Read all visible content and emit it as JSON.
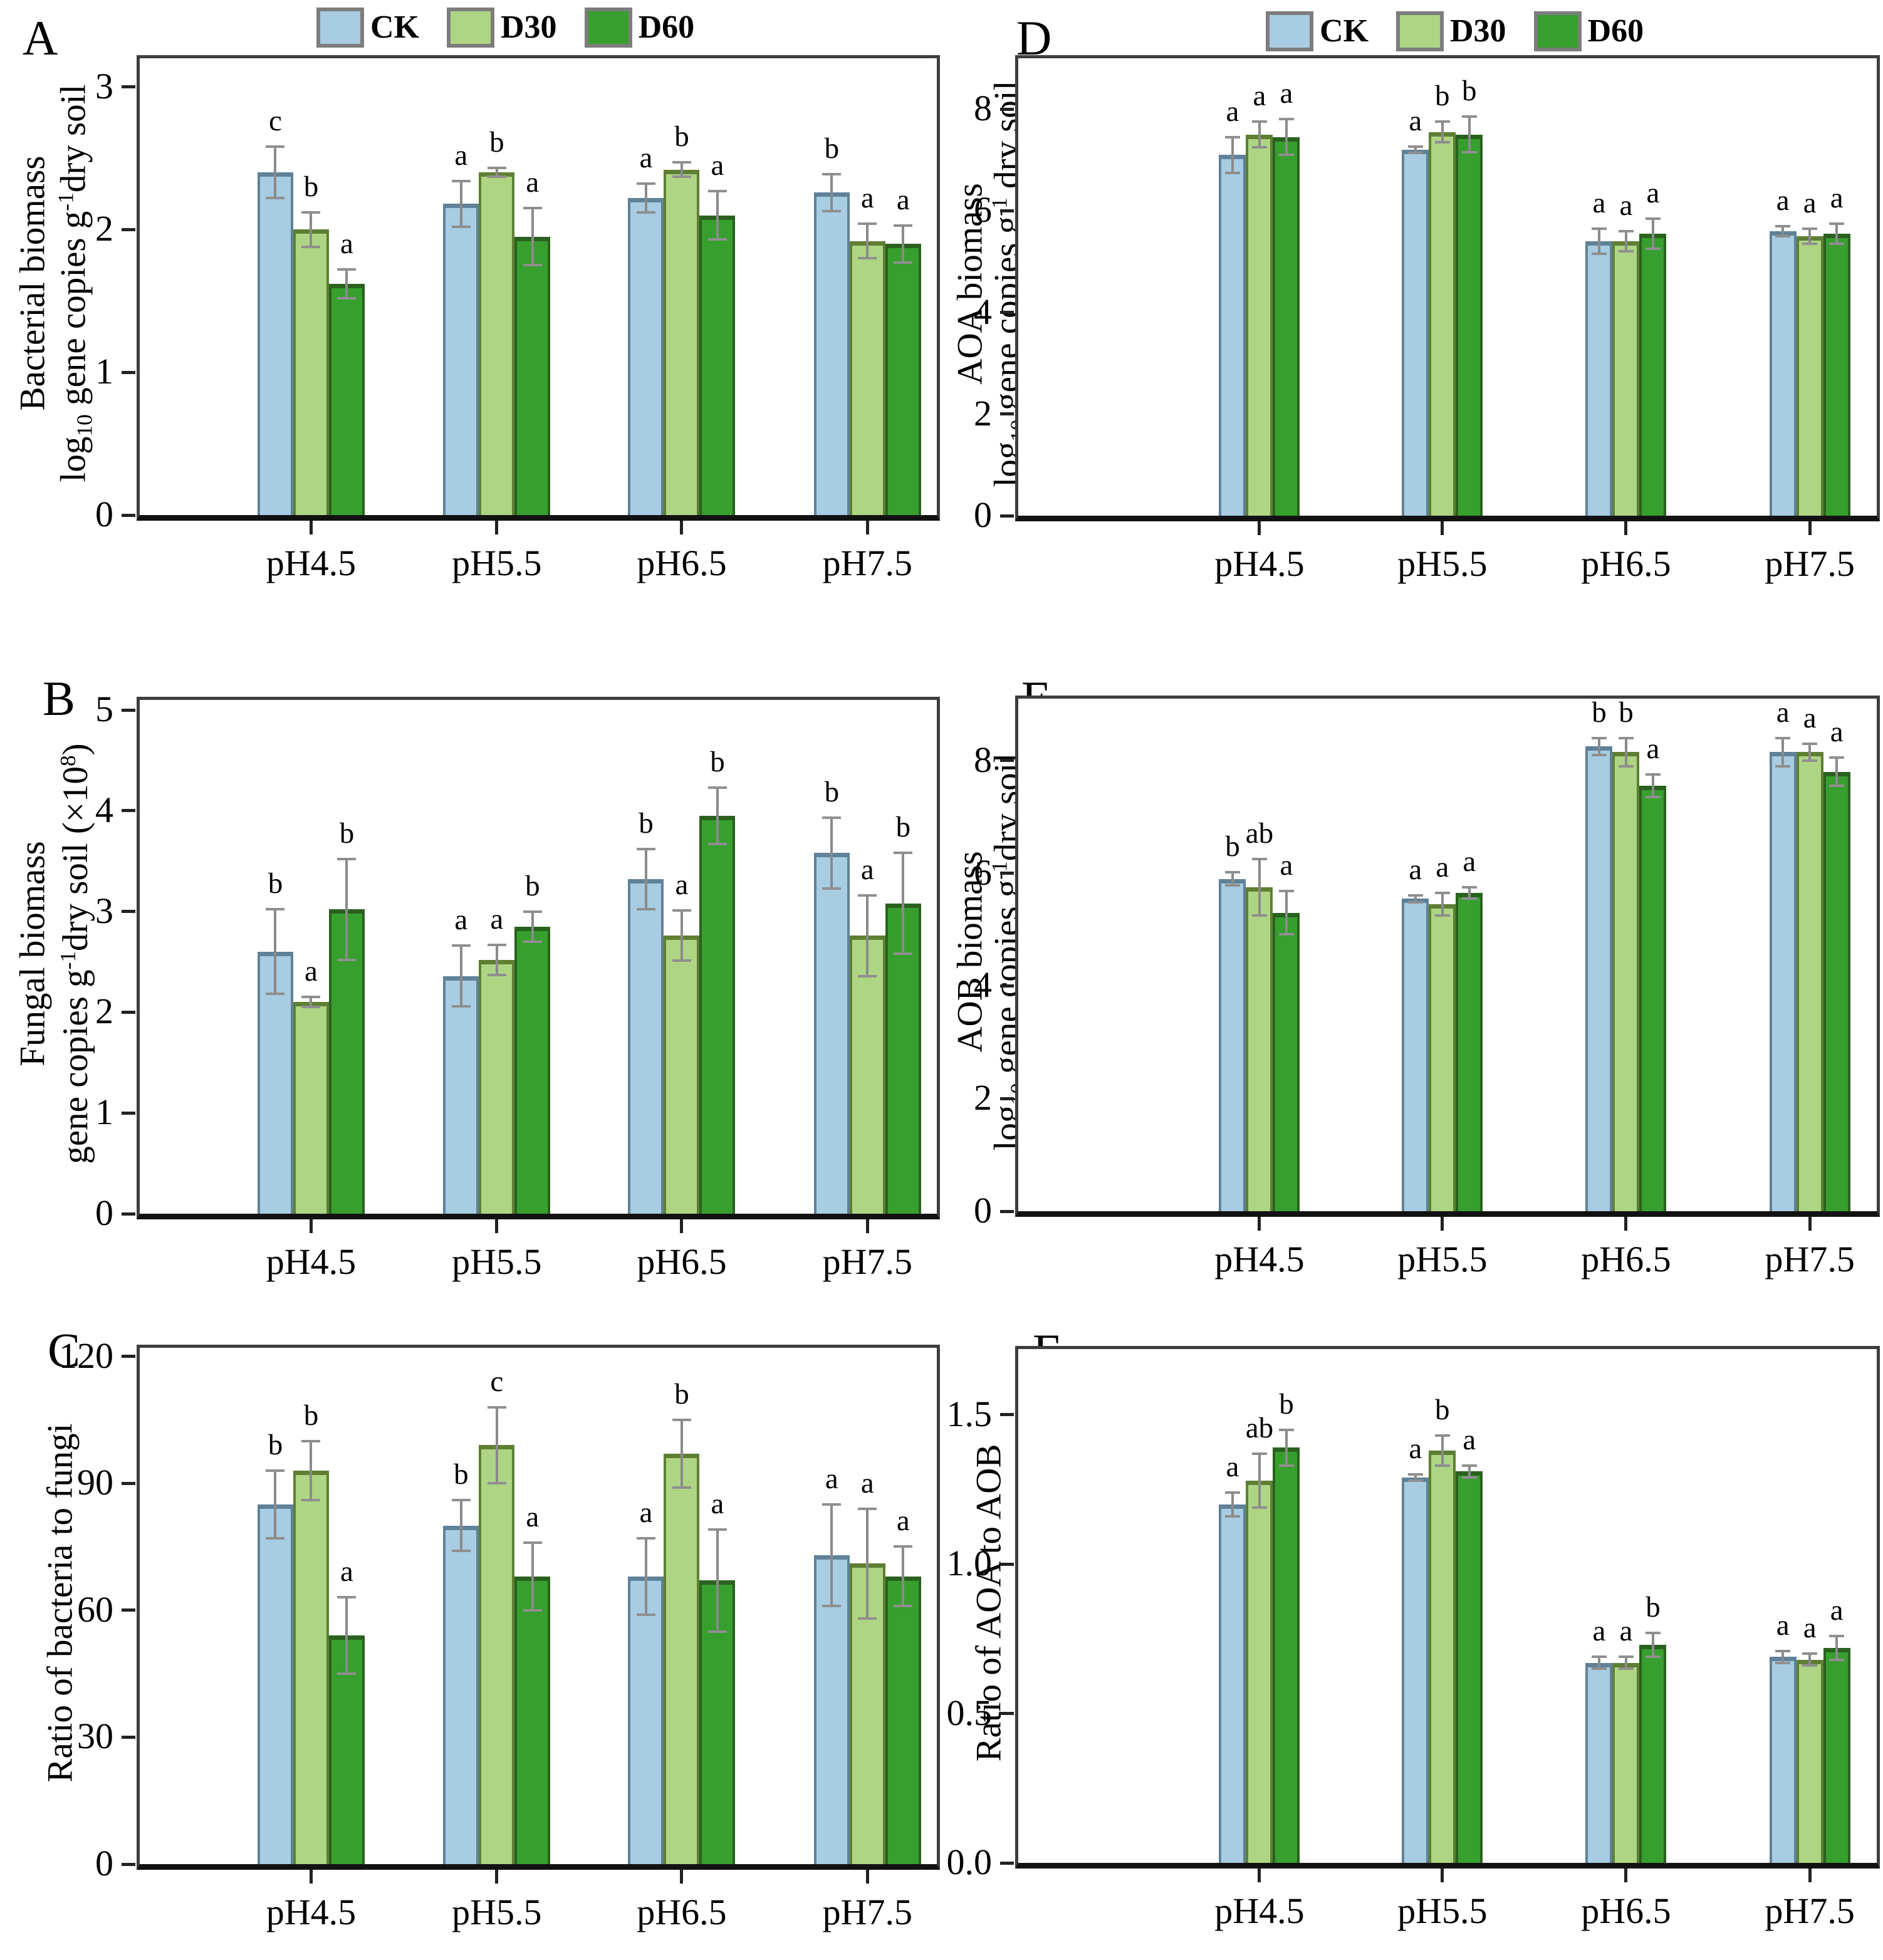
{
  "figure": {
    "legend": {
      "items": [
        {
          "label": "CK",
          "fill": "#a8cce2",
          "border": "#5f8299"
        },
        {
          "label": "D30",
          "fill": "#aed584",
          "border": "#5e7f33"
        },
        {
          "label": "D60",
          "fill": "#379f2e",
          "border": "#2a611f"
        }
      ]
    },
    "colors": {
      "error_bar": "#8a8a8a",
      "frame": "#3e3e3e",
      "axis": "#121212",
      "text": "#000000"
    }
  },
  "chart_data": [
    {
      "panel": "A",
      "type": "bar",
      "title": "Bacterial biomass",
      "ylabel_lines": [
        [
          {
            "t": "Bacterial biomass"
          }
        ],
        [
          {
            "t": "log"
          },
          {
            "t": "10",
            "style": "sub"
          },
          {
            "t": " gene copies g"
          },
          {
            "t": "-1",
            "style": "sup"
          },
          {
            "t": "dry soil"
          }
        ]
      ],
      "categories": [
        "pH4.5",
        "pH5.5",
        "pH6.5",
        "pH7.5"
      ],
      "ylim": [
        0,
        3.2
      ],
      "yticks": [
        {
          "v": 0,
          "label": "0"
        },
        {
          "v": 1,
          "label": "1"
        },
        {
          "v": 2,
          "label": "2"
        },
        {
          "v": 3,
          "label": "3"
        }
      ],
      "legend_position": "top",
      "grid": false,
      "series": [
        {
          "name": "CK",
          "values": [
            2.4,
            2.18,
            2.22,
            2.26
          ],
          "errors": [
            0.18,
            0.16,
            0.1,
            0.13
          ],
          "letters": [
            "c",
            "a",
            "a",
            "b"
          ]
        },
        {
          "name": "D30",
          "values": [
            2.0,
            2.4,
            2.42,
            1.92
          ],
          "errors": [
            0.12,
            0.03,
            0.05,
            0.12
          ],
          "letters": [
            "b",
            "b",
            "b",
            "a"
          ]
        },
        {
          "name": "D60",
          "values": [
            1.62,
            1.95,
            2.1,
            1.9
          ],
          "errors": [
            0.1,
            0.2,
            0.17,
            0.13
          ],
          "letters": [
            "a",
            "a",
            "a",
            "a"
          ]
        }
      ]
    },
    {
      "panel": "B",
      "type": "bar",
      "title": "Fungal biomass",
      "ylabel_lines": [
        [
          {
            "t": "Fungal biomass"
          }
        ],
        [
          {
            "t": "gene copies g"
          },
          {
            "t": "-1",
            "style": "sup"
          },
          {
            "t": "dry soil ("
          },
          {
            "t": "×"
          },
          {
            "t": "10"
          },
          {
            "t": "8",
            "style": "sup"
          },
          {
            "t": ")"
          }
        ]
      ],
      "categories": [
        "pH4.5",
        "pH5.5",
        "pH6.5",
        "pH7.5"
      ],
      "ylim": [
        0,
        5.1
      ],
      "yticks": [
        {
          "v": 0,
          "label": "0"
        },
        {
          "v": 1,
          "label": "1"
        },
        {
          "v": 2,
          "label": "2"
        },
        {
          "v": 3,
          "label": "3"
        },
        {
          "v": 4,
          "label": "4"
        },
        {
          "v": 5,
          "label": "5"
        }
      ],
      "legend_position": "none",
      "grid": false,
      "series": [
        {
          "name": "CK",
          "values": [
            2.6,
            2.36,
            3.32,
            3.58
          ],
          "errors": [
            0.42,
            0.3,
            0.3,
            0.35
          ],
          "letters": [
            "b",
            "a",
            "b",
            "b"
          ]
        },
        {
          "name": "D30",
          "values": [
            2.1,
            2.52,
            2.76,
            2.76
          ],
          "errors": [
            0.05,
            0.15,
            0.25,
            0.4
          ],
          "letters": [
            "a",
            "a",
            "a",
            "a"
          ]
        },
        {
          "name": "D60",
          "values": [
            3.02,
            2.85,
            3.95,
            3.08
          ],
          "errors": [
            0.5,
            0.15,
            0.28,
            0.5
          ],
          "letters": [
            "b",
            "b",
            "b",
            "b"
          ]
        }
      ]
    },
    {
      "panel": "C",
      "type": "bar",
      "title": "Ratio of bacteria to fungi",
      "ylabel_lines": [
        [
          {
            "t": "Ratio of bacteria to fungi"
          }
        ]
      ],
      "categories": [
        "pH4.5",
        "pH5.5",
        "pH6.5",
        "pH7.5"
      ],
      "ylim": [
        0,
        122
      ],
      "yticks": [
        {
          "v": 0,
          "label": "0"
        },
        {
          "v": 30,
          "label": "30"
        },
        {
          "v": 60,
          "label": "60"
        },
        {
          "v": 90,
          "label": "90"
        },
        {
          "v": 120,
          "label": "120"
        }
      ],
      "legend_position": "none",
      "grid": false,
      "series": [
        {
          "name": "CK",
          "values": [
            85,
            80,
            68,
            73
          ],
          "errors": [
            8,
            6,
            9,
            12
          ],
          "letters": [
            "b",
            "b",
            "a",
            "a"
          ]
        },
        {
          "name": "D30",
          "values": [
            93,
            99,
            97,
            71
          ],
          "errors": [
            7,
            9,
            8,
            13
          ],
          "letters": [
            "b",
            "c",
            "b",
            "a"
          ]
        },
        {
          "name": "D60",
          "values": [
            54,
            68,
            67,
            68
          ],
          "errors": [
            9,
            8,
            12,
            7
          ],
          "letters": [
            "a",
            "a",
            "a",
            "a"
          ]
        }
      ]
    },
    {
      "panel": "D",
      "type": "bar",
      "title": "AOA biomass",
      "ylabel_lines": [
        [
          {
            "t": "AOA biomass"
          }
        ],
        [
          {
            "t": "log"
          },
          {
            "t": "10",
            "style": "sub"
          },
          {
            "t": " gene copies g"
          },
          {
            "t": "-1",
            "style": "sup"
          },
          {
            "t": " dry soil"
          }
        ]
      ],
      "categories": [
        "pH4.5",
        "pH5.5",
        "pH6.5",
        "pH7.5"
      ],
      "ylim": [
        0,
        9.0
      ],
      "yticks": [
        {
          "v": 0,
          "label": "0"
        },
        {
          "v": 2,
          "label": "2"
        },
        {
          "v": 4,
          "label": "4"
        },
        {
          "v": 6,
          "label": "6"
        },
        {
          "v": 8,
          "label": "8"
        }
      ],
      "legend_position": "top",
      "grid": false,
      "series": [
        {
          "name": "CK",
          "values": [
            7.1,
            7.2,
            5.4,
            5.6
          ],
          "errors": [
            0.35,
            0.06,
            0.25,
            0.1
          ],
          "letters": [
            "a",
            "a",
            "a",
            "a"
          ]
        },
        {
          "name": "D30",
          "values": [
            7.5,
            7.55,
            5.4,
            5.5
          ],
          "errors": [
            0.25,
            0.2,
            0.2,
            0.15
          ],
          "letters": [
            "a",
            "b",
            "a",
            "a"
          ]
        },
        {
          "name": "D60",
          "values": [
            7.45,
            7.5,
            5.55,
            5.55
          ],
          "errors": [
            0.35,
            0.35,
            0.3,
            0.2
          ],
          "letters": [
            "a",
            "b",
            "a",
            "a"
          ]
        }
      ]
    },
    {
      "panel": "E",
      "type": "bar",
      "title": "AOB biomass",
      "ylabel_lines": [
        [
          {
            "t": "AOB biomass"
          }
        ],
        [
          {
            "t": "log"
          },
          {
            "t": "10",
            "style": "sub"
          },
          {
            "t": " gene copies g"
          },
          {
            "t": "-1",
            "style": "sup"
          },
          {
            "t": "dry soil"
          }
        ]
      ],
      "categories": [
        "pH4.5",
        "pH5.5",
        "pH6.5",
        "pH7.5"
      ],
      "ylim": [
        0,
        9.1
      ],
      "yticks": [
        {
          "v": 0,
          "label": "0"
        },
        {
          "v": 2,
          "label": "2"
        },
        {
          "v": 4,
          "label": "4"
        },
        {
          "v": 6,
          "label": "6"
        },
        {
          "v": 8,
          "label": "8"
        }
      ],
      "legend_position": "none",
      "grid": false,
      "series": [
        {
          "name": "CK",
          "values": [
            5.9,
            5.55,
            8.25,
            8.15
          ],
          "errors": [
            0.12,
            0.06,
            0.15,
            0.25
          ],
          "letters": [
            "b",
            "a",
            "b",
            "a"
          ]
        },
        {
          "name": "D30",
          "values": [
            5.75,
            5.45,
            8.15,
            8.15
          ],
          "errors": [
            0.5,
            0.2,
            0.25,
            0.15
          ],
          "letters": [
            "ab",
            "a",
            "b",
            "a"
          ]
        },
        {
          "name": "D60",
          "values": [
            5.3,
            5.65,
            7.55,
            7.8
          ],
          "errors": [
            0.38,
            0.1,
            0.2,
            0.25
          ],
          "letters": [
            "a",
            "a",
            "a",
            "a"
          ]
        }
      ]
    },
    {
      "panel": "F",
      "type": "bar",
      "title": "Ratio of AOA to AOB",
      "ylabel_lines": [
        [
          {
            "t": "Ratio of AOA to AOB"
          }
        ]
      ],
      "categories": [
        "pH4.5",
        "pH5.5",
        "pH6.5",
        "pH7.5"
      ],
      "ylim": [
        0,
        1.72
      ],
      "yticks": [
        {
          "v": 0,
          "label": "0.0"
        },
        {
          "v": 0.5,
          "label": "0.5"
        },
        {
          "v": 1.0,
          "label": "1.0"
        },
        {
          "v": 1.5,
          "label": "1.5"
        }
      ],
      "legend_position": "none",
      "grid": false,
      "series": [
        {
          "name": "CK",
          "values": [
            1.2,
            1.29,
            0.67,
            0.69
          ],
          "errors": [
            0.04,
            0.01,
            0.02,
            0.02
          ],
          "letters": [
            "a",
            "a",
            "a",
            "a"
          ]
        },
        {
          "name": "D30",
          "values": [
            1.28,
            1.38,
            0.67,
            0.68
          ],
          "errors": [
            0.09,
            0.05,
            0.02,
            0.02
          ],
          "letters": [
            "ab",
            "b",
            "a",
            "a"
          ]
        },
        {
          "name": "D60",
          "values": [
            1.39,
            1.31,
            0.73,
            0.72
          ],
          "errors": [
            0.06,
            0.02,
            0.04,
            0.04
          ],
          "letters": [
            "b",
            "a",
            "b",
            "a"
          ]
        }
      ]
    }
  ]
}
